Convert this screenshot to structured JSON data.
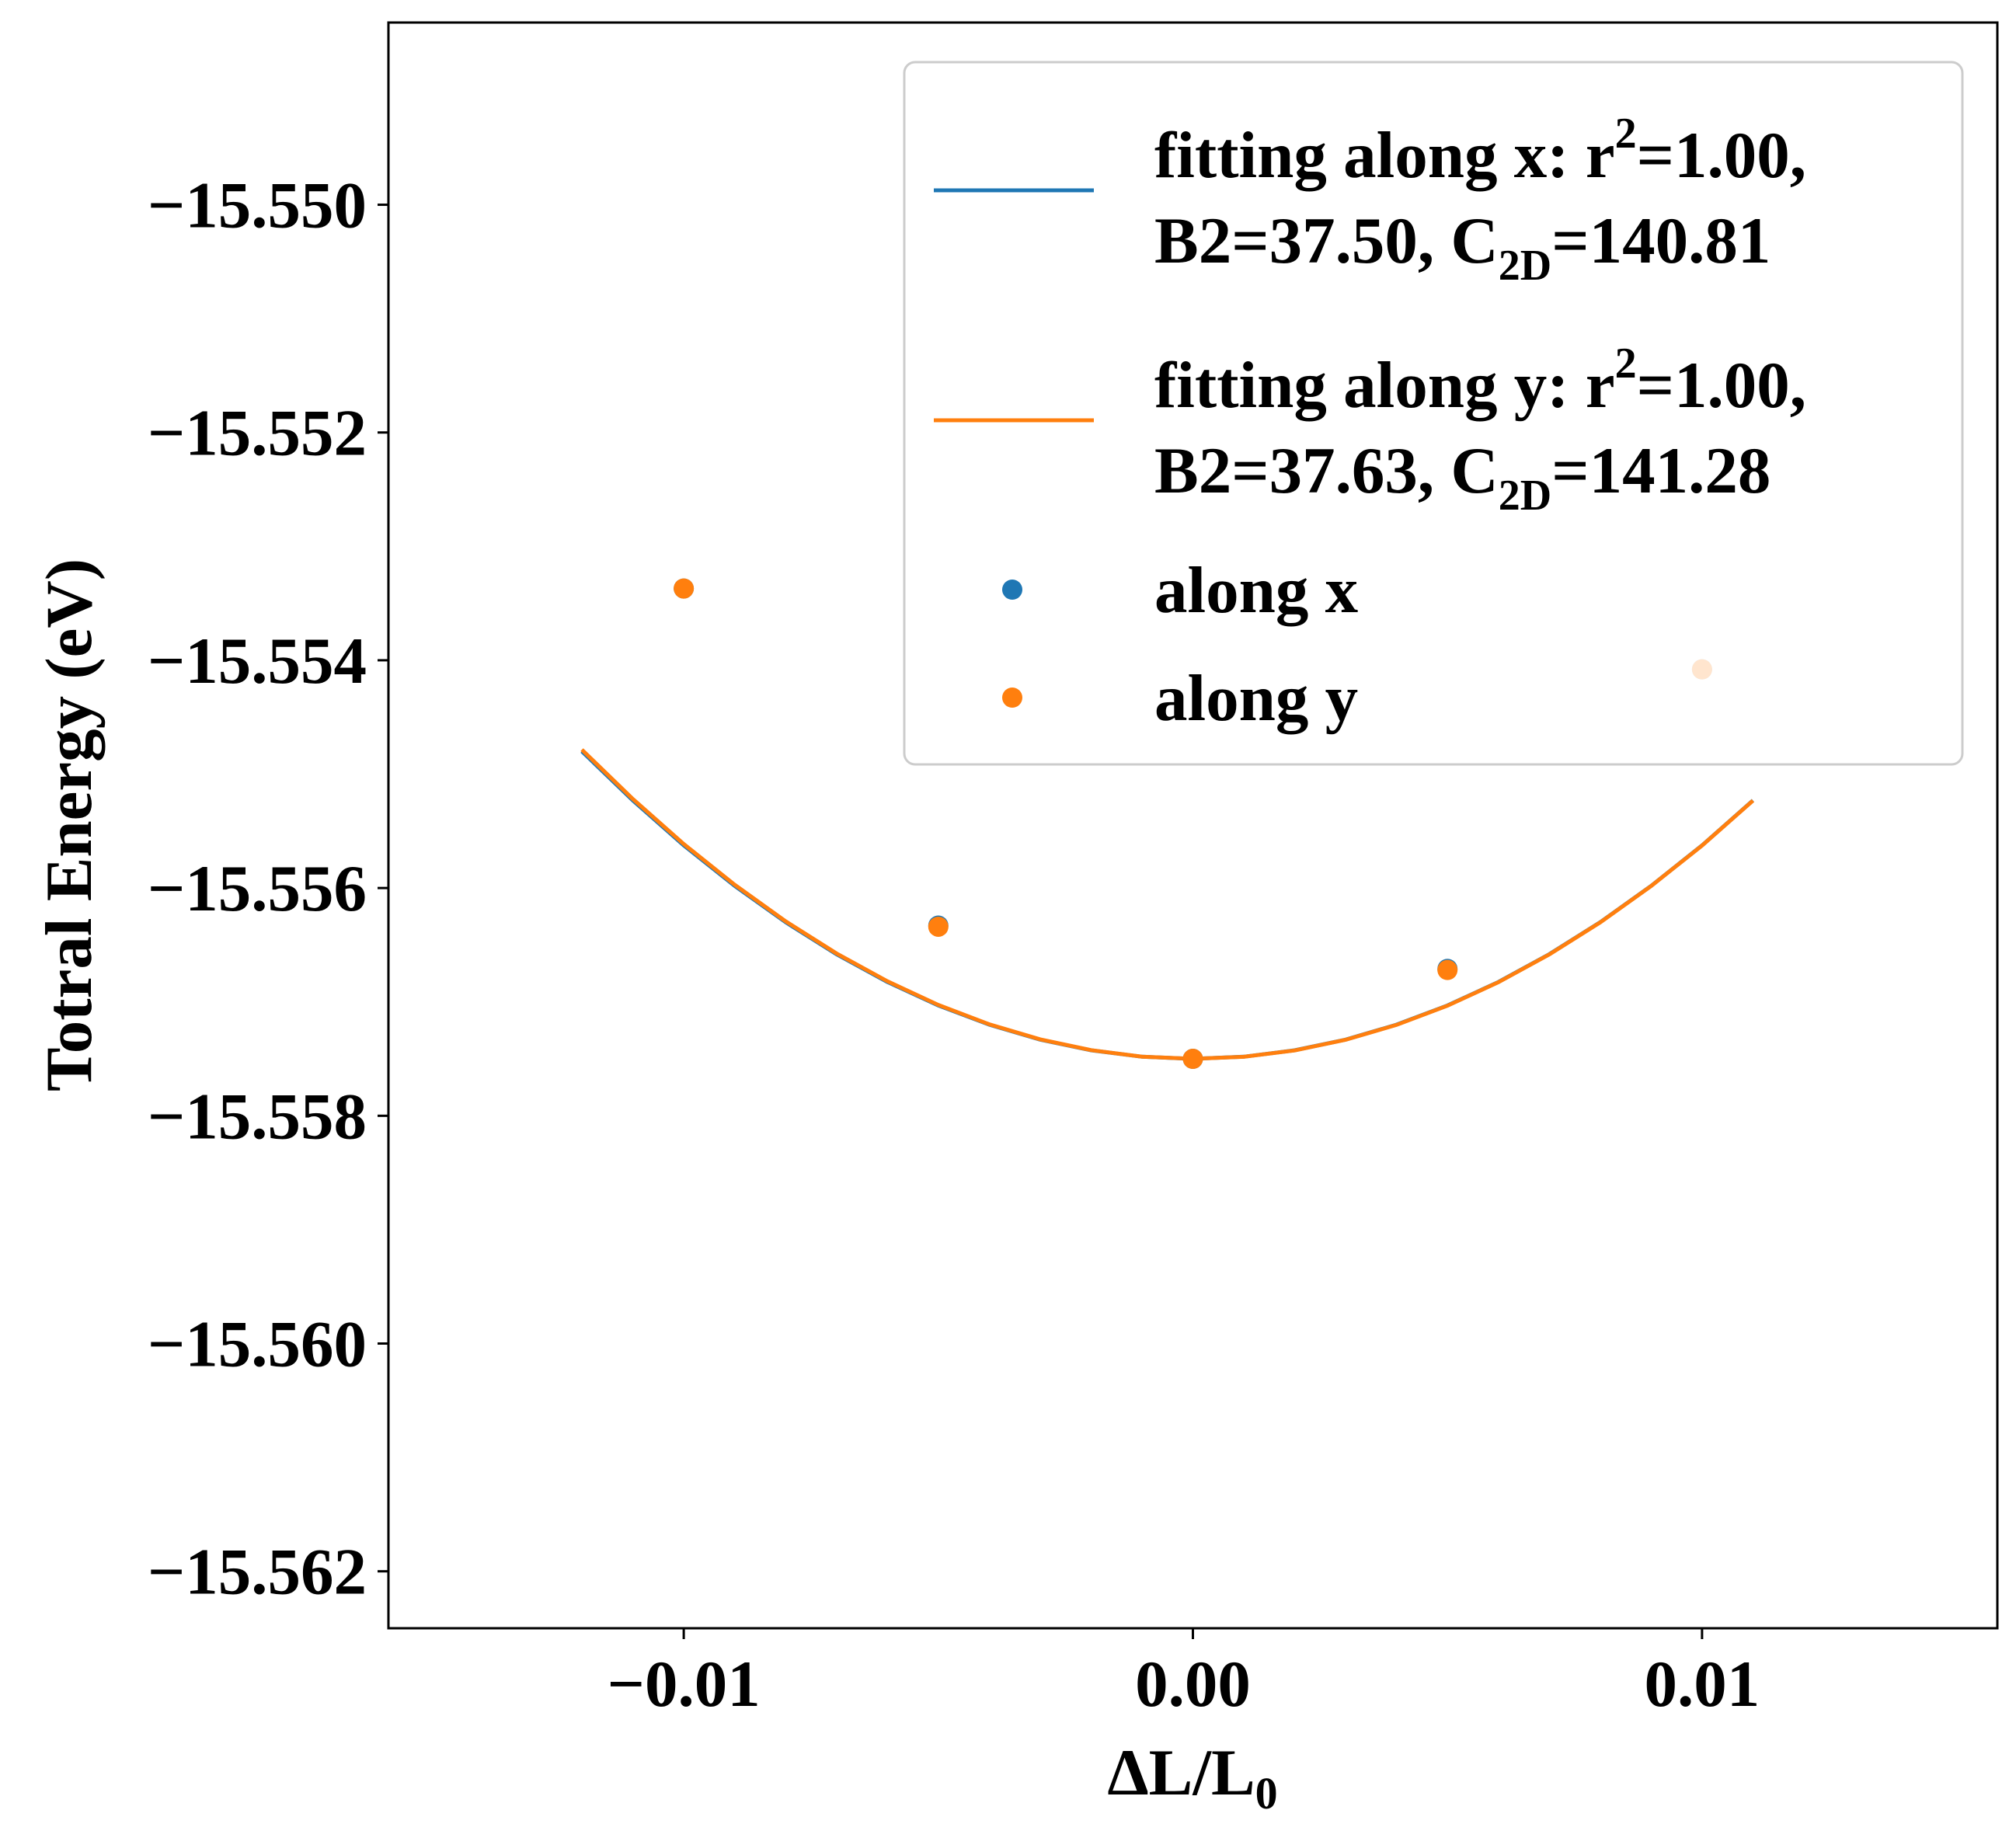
{
  "chart_data": {
    "type": "line",
    "xlabel": {
      "main": "ΔL/L",
      "sub": "0"
    },
    "ylabel": "Totral Energy (eV)",
    "xlim": [
      -0.0158,
      0.0158
    ],
    "ylim": [
      -15.5625,
      -15.5484
    ],
    "x_ticks": [
      {
        "value": -0.01,
        "label": "−0.01"
      },
      {
        "value": 0.0,
        "label": "0.00"
      },
      {
        "value": 0.01,
        "label": "0.01"
      }
    ],
    "y_ticks": [
      {
        "value": -15.55,
        "label": "−15.550"
      },
      {
        "value": -15.552,
        "label": "−15.552"
      },
      {
        "value": -15.554,
        "label": "−15.554"
      },
      {
        "value": -15.556,
        "label": "−15.556"
      },
      {
        "value": -15.558,
        "label": "−15.558"
      },
      {
        "value": -15.56,
        "label": "−15.560"
      },
      {
        "value": -15.562,
        "label": "−15.562"
      }
    ],
    "grid": false,
    "legend_position": "top-right",
    "fit_x_range": [
      -0.012,
      0.011
    ],
    "series": [
      {
        "kind": "fit",
        "color": "#1f77b4",
        "legend": {
          "line1_a": "fitting along x: r",
          "line1_sup": "2",
          "line1_b": "=1.00,",
          "line2_a": "B2=37.50, C",
          "line2_sub": "2D",
          "line2_b": "=140.81"
        },
        "coefficients": {
          "a": 18.75,
          "b": -0.0,
          "c": -15.5575
        }
      },
      {
        "kind": "fit",
        "color": "#ff7f0e",
        "legend": {
          "line1_a": "fitting along y: r",
          "line1_sup": "2",
          "line1_b": "=1.00,",
          "line2_a": "B2=37.63, C",
          "line2_sub": "2D",
          "line2_b": "=141.28"
        },
        "coefficients": {
          "a": 18.8,
          "b": -0.00065,
          "c": -15.5575
        }
      },
      {
        "kind": "points",
        "name": "along x",
        "color": "#1f77b4",
        "x": [
          -0.01,
          -0.005,
          0.0,
          0.005,
          0.01
        ],
        "y": [
          -15.55337,
          -15.55633,
          -15.5575,
          -15.55671,
          -15.55408
        ]
      },
      {
        "kind": "points",
        "name": "along y",
        "color": "#ff7f0e",
        "x": [
          -0.01,
          -0.005,
          0.0,
          0.005,
          0.01
        ],
        "y": [
          -15.55337,
          -15.55634,
          -15.5575,
          -15.55672,
          -15.55408
        ]
      }
    ]
  }
}
